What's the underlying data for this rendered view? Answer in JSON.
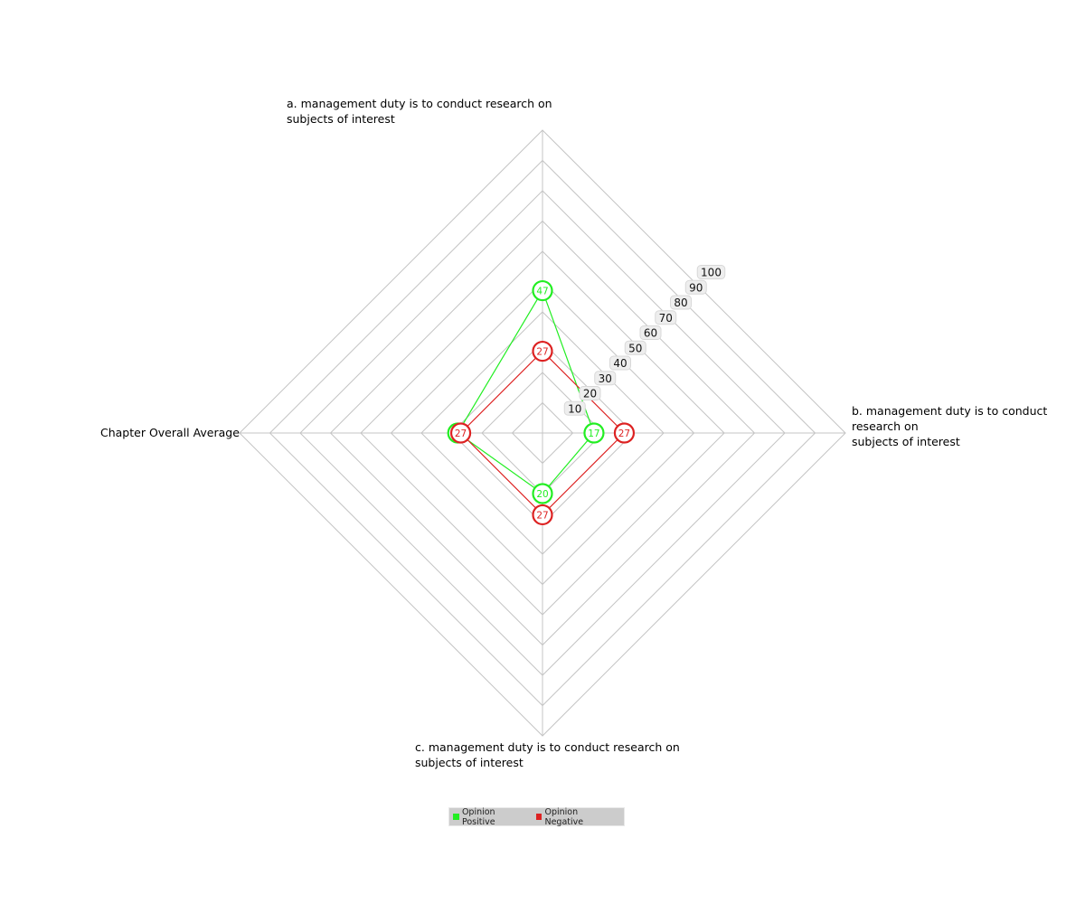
{
  "chart_data": {
    "type": "radar",
    "axes": [
      "a. management duty is to conduct research on\nsubjects of interest",
      "b. management duty is to conduct research on\nsubjects of interest",
      "c. management duty is to conduct research on\nsubjects of interest",
      "Chapter Overall Average"
    ],
    "scale": {
      "min": 0,
      "max": 100,
      "ticks": [
        10,
        20,
        30,
        40,
        50,
        60,
        70,
        80,
        90,
        100
      ]
    },
    "series": [
      {
        "name": "Opinion Positive",
        "color": "#22ee22",
        "values": [
          47,
          17,
          20,
          28
        ]
      },
      {
        "name": "Opinion Negative",
        "color": "#dd2222",
        "values": [
          27,
          27,
          27,
          27
        ]
      }
    ],
    "data_labels": {
      "Opinion Positive": [
        "47",
        "17",
        "20",
        ""
      ],
      "Opinion Negative": [
        "27",
        "27",
        "27",
        "27"
      ]
    },
    "grid": true,
    "legend_position": "bottom-center"
  }
}
